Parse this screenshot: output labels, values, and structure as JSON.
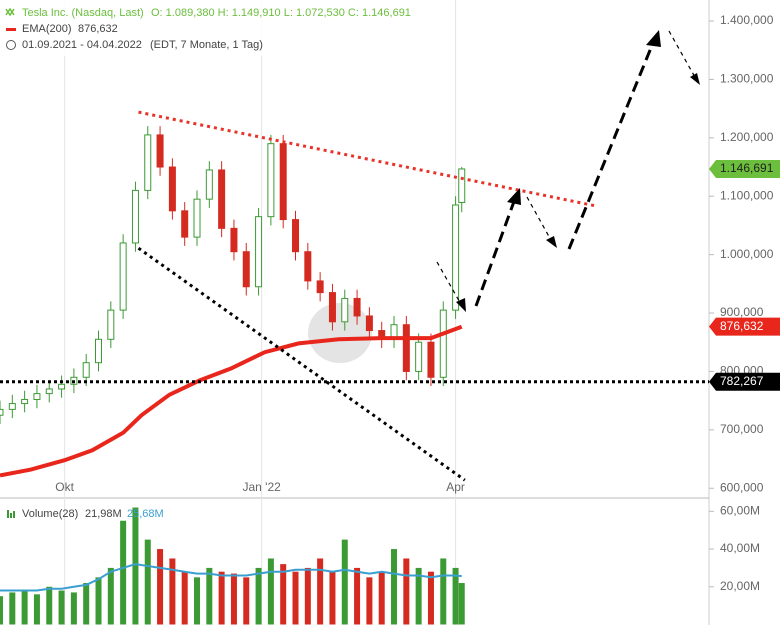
{
  "chart_data": {
    "type": "candlestick",
    "title": "Tesla Inc. (Nasdaq, Last)",
    "quote": "O: 1.089,380   H: 1.149,910   L: 1.072,530   C: 1.146,691",
    "indicator": "EMA(200)",
    "indicator_value": "876,632",
    "period": "01.09.2021 - 04.04.2022",
    "period_note": "(EDT, 7 Monate, 1 Tag)",
    "xlim": [
      0,
      230
    ],
    "xticks": [
      {
        "value": 21,
        "label": "Okt"
      },
      {
        "value": 85,
        "label": "Jan '22"
      },
      {
        "value": 148,
        "label": "Apr"
      }
    ],
    "ylim": [
      585,
      1436
    ],
    "yticks": [
      {
        "value": 600,
        "label": "600,000"
      },
      {
        "value": 700,
        "label": "700,000"
      },
      {
        "value": 800,
        "label": "800,000"
      },
      {
        "value": 900,
        "label": "900,000"
      },
      {
        "value": 1000,
        "label": "1.000,000"
      },
      {
        "value": 1100,
        "label": "1.100,000"
      },
      {
        "value": 1200,
        "label": "1.200,000"
      },
      {
        "value": 1300,
        "label": "1.300,000"
      },
      {
        "value": 1400,
        "label": "1.400,000"
      }
    ],
    "up_color": "#3c9a34",
    "down_color": "#d42a20",
    "x": [
      0,
      4,
      8,
      12,
      16,
      20,
      24,
      28,
      32,
      36,
      40,
      44,
      48,
      52,
      56,
      60,
      64,
      68,
      72,
      76,
      80,
      84,
      88,
      92,
      96,
      100,
      104,
      108,
      112,
      116,
      120,
      124,
      128,
      132,
      136,
      140,
      144,
      148,
      150
    ],
    "open": [
      725,
      735,
      745,
      752,
      762,
      770,
      778,
      790,
      815,
      855,
      905,
      1020,
      1110,
      1205,
      1150,
      1075,
      1030,
      1095,
      1145,
      1045,
      1005,
      945,
      1065,
      1190,
      1060,
      1005,
      955,
      935,
      885,
      925,
      895,
      870,
      855,
      880,
      800,
      850,
      790,
      905,
      1089.38
    ],
    "high": [
      750,
      760,
      767,
      777,
      785,
      793,
      805,
      830,
      870,
      920,
      1035,
      1125,
      1220,
      1220,
      1165,
      1090,
      1110,
      1160,
      1160,
      1060,
      1020,
      1080,
      1205,
      1205,
      1075,
      1020,
      970,
      950,
      940,
      940,
      910,
      885,
      895,
      895,
      865,
      865,
      920,
      1100,
      1149.91
    ],
    "low": [
      710,
      720,
      730,
      737,
      747,
      755,
      763,
      775,
      800,
      840,
      890,
      1005,
      1095,
      1135,
      1060,
      1015,
      1015,
      1080,
      1030,
      990,
      930,
      930,
      1050,
      1045,
      990,
      940,
      920,
      870,
      870,
      880,
      855,
      840,
      840,
      785,
      785,
      775,
      775,
      890,
      1072.53
    ],
    "close": [
      735,
      745,
      752,
      762,
      770,
      778,
      790,
      815,
      855,
      905,
      1020,
      1110,
      1205,
      1150,
      1075,
      1030,
      1095,
      1145,
      1045,
      1005,
      945,
      1065,
      1190,
      1060,
      1005,
      955,
      935,
      885,
      925,
      895,
      870,
      855,
      880,
      800,
      850,
      790,
      905,
      1085,
      1146.691
    ],
    "last": {
      "value": 1146.691,
      "label": "1.146,691",
      "color": "#6cbf3c"
    },
    "ema": {
      "color": "#e8261c",
      "x": [
        0,
        10,
        21,
        30,
        40,
        46,
        55,
        65,
        75,
        86,
        97,
        110,
        124,
        140,
        150
      ],
      "values": [
        622,
        632,
        648,
        665,
        695,
        725,
        760,
        785,
        805,
        833,
        848,
        855,
        857,
        857,
        876.632
      ],
      "last": {
        "value": 876.632,
        "label": "876,632"
      }
    },
    "hline": {
      "value": 782.267,
      "label": "782,267",
      "color": "#000000"
    },
    "trendlines": [
      {
        "color": "#e8322a",
        "x": [
          45,
          194
        ],
        "y": [
          1244,
          1083
        ]
      },
      {
        "color": "#000000",
        "x": [
          45,
          151
        ],
        "y": [
          1011,
          614
        ]
      }
    ],
    "volume": {
      "title": "Volume(28)",
      "value_label": "21,98M",
      "avg_label": "25,68M",
      "ylim": [
        0,
        66
      ],
      "yticks": [
        {
          "value": 20,
          "label": "20,00M"
        },
        {
          "value": 40,
          "label": "40,00M"
        },
        {
          "value": 60,
          "label": "60,00M"
        }
      ],
      "values": [
        15,
        17,
        18,
        16,
        20,
        18,
        17,
        22,
        25,
        30,
        55,
        62,
        45,
        40,
        35,
        28,
        25,
        30,
        28,
        27,
        25,
        30,
        35,
        32,
        28,
        30,
        35,
        28,
        45,
        30,
        25,
        28,
        40,
        35,
        30,
        28,
        35,
        30,
        21.98
      ],
      "avg": [
        18,
        18,
        18,
        18,
        19,
        19,
        20,
        21,
        24,
        28,
        30,
        32,
        31,
        30,
        29,
        28,
        27,
        27,
        26,
        26,
        26,
        27,
        28,
        28,
        29,
        29,
        29,
        28,
        29,
        28,
        27,
        28,
        27,
        26,
        26,
        25,
        26,
        26,
        25.68
      ],
      "avg_color": "#3a9fd0"
    }
  }
}
